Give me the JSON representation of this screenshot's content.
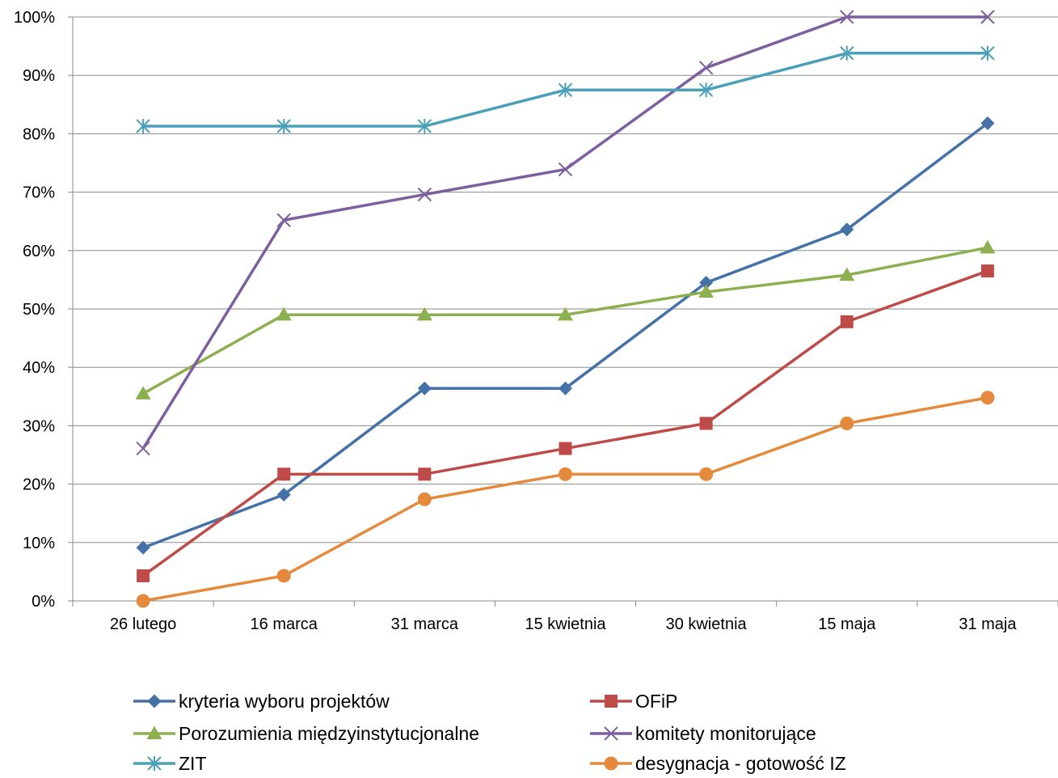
{
  "chart_data": {
    "type": "line",
    "title": "",
    "xlabel": "",
    "ylabel": "",
    "categories": [
      "26 lutego",
      "16 marca",
      "31 marca",
      "15 kwietnia",
      "30 kwietnia",
      "15 maja",
      "31 maja"
    ],
    "ylim": [
      0,
      100
    ],
    "y_tick_labels": [
      "0%",
      "10%",
      "20%",
      "30%",
      "40%",
      "50%",
      "60%",
      "70%",
      "80%",
      "90%",
      "100%"
    ],
    "grid": "horizontal",
    "legend_position": "bottom",
    "series": [
      {
        "name": "kryteria wyboru projektów",
        "color": "#4472A8",
        "marker": "diamond",
        "values": [
          9.1,
          18.2,
          36.4,
          36.4,
          54.5,
          63.6,
          81.8
        ]
      },
      {
        "name": "OFiP",
        "color": "#BE4B48",
        "marker": "square",
        "values": [
          4.3,
          21.7,
          21.7,
          26.1,
          30.4,
          47.8,
          56.5
        ]
      },
      {
        "name": "Porozumienia międzyinstytucjonalne",
        "color": "#8CB04F",
        "marker": "triangle",
        "values": [
          35.5,
          49.0,
          49.0,
          49.0,
          52.9,
          55.8,
          60.5
        ]
      },
      {
        "name": "komitety monitorujące",
        "color": "#7D5FA0",
        "marker": "x",
        "values": [
          26.1,
          65.2,
          69.6,
          73.9,
          91.3,
          100,
          100
        ]
      },
      {
        "name": "ZIT",
        "color": "#4AA0B8",
        "marker": "asterisk",
        "values": [
          81.3,
          81.3,
          81.3,
          87.5,
          87.5,
          93.8,
          93.8
        ]
      },
      {
        "name": "desygnacja - gotowość IZ",
        "color": "#E58A3C",
        "marker": "circle",
        "values": [
          0,
          4.3,
          17.4,
          21.7,
          21.7,
          30.4,
          34.8
        ]
      }
    ]
  }
}
